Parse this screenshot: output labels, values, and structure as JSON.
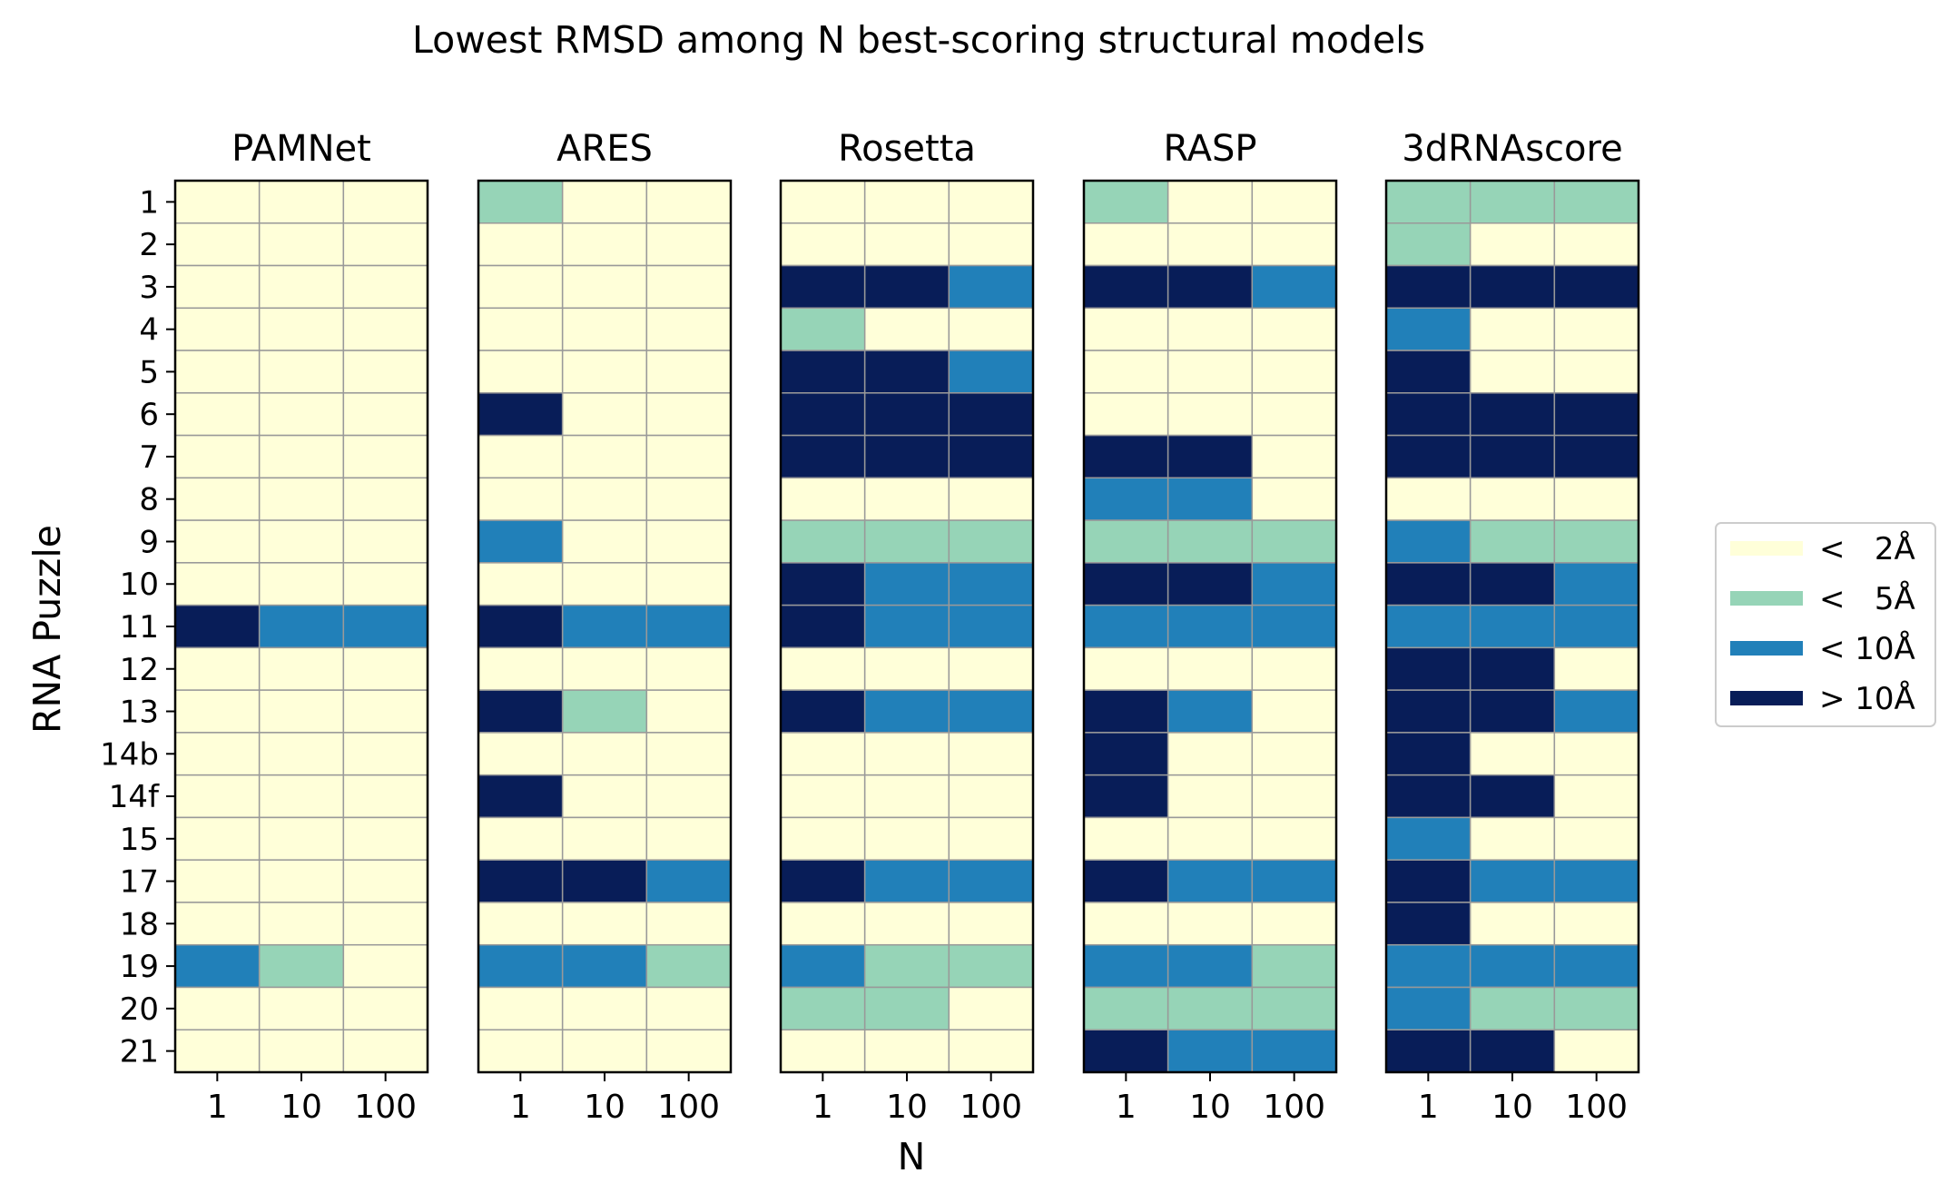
{
  "chart_data": {
    "type": "heatmap",
    "title": "Lowest RMSD among N best-scoring structural models",
    "xlabel": "N",
    "ylabel": "RNA Puzzle",
    "x_categories": [
      "1",
      "10",
      "100"
    ],
    "y_categories": [
      "1",
      "2",
      "3",
      "4",
      "5",
      "6",
      "7",
      "8",
      "9",
      "10",
      "11",
      "12",
      "13",
      "14b",
      "14f",
      "15",
      "17",
      "18",
      "19",
      "20",
      "21"
    ],
    "legend": {
      "placement": "right",
      "entries": [
        {
          "level": 0,
          "label": "<   2Å",
          "color": "#ffffd9"
        },
        {
          "level": 1,
          "label": "<   5Å",
          "color": "#96d4b7"
        },
        {
          "level": 2,
          "label": "< 10Å",
          "color": "#2180b9"
        },
        {
          "level": 3,
          "label": "> 10Å",
          "color": "#081d58"
        }
      ]
    },
    "panels": [
      {
        "name": "PAMNet",
        "values": [
          [
            0,
            0,
            0
          ],
          [
            0,
            0,
            0
          ],
          [
            0,
            0,
            0
          ],
          [
            0,
            0,
            0
          ],
          [
            0,
            0,
            0
          ],
          [
            0,
            0,
            0
          ],
          [
            0,
            0,
            0
          ],
          [
            0,
            0,
            0
          ],
          [
            0,
            0,
            0
          ],
          [
            0,
            0,
            0
          ],
          [
            3,
            2,
            2
          ],
          [
            0,
            0,
            0
          ],
          [
            0,
            0,
            0
          ],
          [
            0,
            0,
            0
          ],
          [
            0,
            0,
            0
          ],
          [
            0,
            0,
            0
          ],
          [
            0,
            0,
            0
          ],
          [
            0,
            0,
            0
          ],
          [
            2,
            1,
            0
          ],
          [
            0,
            0,
            0
          ],
          [
            0,
            0,
            0
          ]
        ]
      },
      {
        "name": "ARES",
        "values": [
          [
            1,
            0,
            0
          ],
          [
            0,
            0,
            0
          ],
          [
            0,
            0,
            0
          ],
          [
            0,
            0,
            0
          ],
          [
            0,
            0,
            0
          ],
          [
            3,
            0,
            0
          ],
          [
            0,
            0,
            0
          ],
          [
            0,
            0,
            0
          ],
          [
            2,
            0,
            0
          ],
          [
            0,
            0,
            0
          ],
          [
            3,
            2,
            2
          ],
          [
            0,
            0,
            0
          ],
          [
            3,
            1,
            0
          ],
          [
            0,
            0,
            0
          ],
          [
            3,
            0,
            0
          ],
          [
            0,
            0,
            0
          ],
          [
            3,
            3,
            2
          ],
          [
            0,
            0,
            0
          ],
          [
            2,
            2,
            1
          ],
          [
            0,
            0,
            0
          ],
          [
            0,
            0,
            0
          ]
        ]
      },
      {
        "name": "Rosetta",
        "values": [
          [
            0,
            0,
            0
          ],
          [
            0,
            0,
            0
          ],
          [
            3,
            3,
            2
          ],
          [
            1,
            0,
            0
          ],
          [
            3,
            3,
            2
          ],
          [
            3,
            3,
            3
          ],
          [
            3,
            3,
            3
          ],
          [
            0,
            0,
            0
          ],
          [
            1,
            1,
            1
          ],
          [
            3,
            2,
            2
          ],
          [
            3,
            2,
            2
          ],
          [
            0,
            0,
            0
          ],
          [
            3,
            2,
            2
          ],
          [
            0,
            0,
            0
          ],
          [
            0,
            0,
            0
          ],
          [
            0,
            0,
            0
          ],
          [
            3,
            2,
            2
          ],
          [
            0,
            0,
            0
          ],
          [
            2,
            1,
            1
          ],
          [
            1,
            1,
            0
          ],
          [
            0,
            0,
            0
          ]
        ]
      },
      {
        "name": "RASP",
        "values": [
          [
            1,
            0,
            0
          ],
          [
            0,
            0,
            0
          ],
          [
            3,
            3,
            2
          ],
          [
            0,
            0,
            0
          ],
          [
            0,
            0,
            0
          ],
          [
            0,
            0,
            0
          ],
          [
            3,
            3,
            0
          ],
          [
            2,
            2,
            0
          ],
          [
            1,
            1,
            1
          ],
          [
            3,
            3,
            2
          ],
          [
            2,
            2,
            2
          ],
          [
            0,
            0,
            0
          ],
          [
            3,
            2,
            0
          ],
          [
            3,
            0,
            0
          ],
          [
            3,
            0,
            0
          ],
          [
            0,
            0,
            0
          ],
          [
            3,
            2,
            2
          ],
          [
            0,
            0,
            0
          ],
          [
            2,
            2,
            1
          ],
          [
            1,
            1,
            1
          ],
          [
            3,
            2,
            2
          ]
        ]
      },
      {
        "name": "3dRNAscore",
        "values": [
          [
            1,
            1,
            1
          ],
          [
            1,
            0,
            0
          ],
          [
            3,
            3,
            3
          ],
          [
            2,
            0,
            0
          ],
          [
            3,
            0,
            0
          ],
          [
            3,
            3,
            3
          ],
          [
            3,
            3,
            3
          ],
          [
            0,
            0,
            0
          ],
          [
            2,
            1,
            1
          ],
          [
            3,
            3,
            2
          ],
          [
            2,
            2,
            2
          ],
          [
            3,
            3,
            0
          ],
          [
            3,
            3,
            2
          ],
          [
            3,
            0,
            0
          ],
          [
            3,
            3,
            0
          ],
          [
            2,
            0,
            0
          ],
          [
            3,
            2,
            2
          ],
          [
            3,
            0,
            0
          ],
          [
            2,
            2,
            2
          ],
          [
            2,
            1,
            1
          ],
          [
            3,
            3,
            0
          ]
        ]
      }
    ]
  }
}
